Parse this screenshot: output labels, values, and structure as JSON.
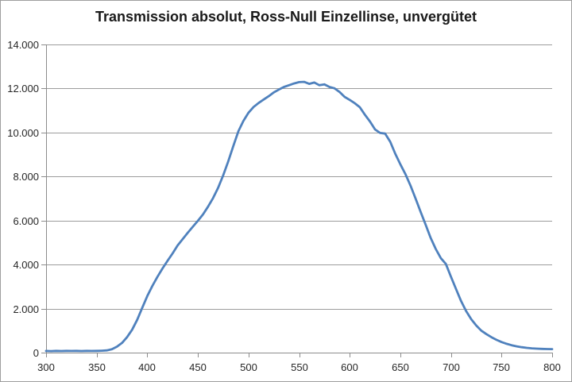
{
  "window": {
    "background": "#ffffff",
    "border_color": "#9e9e9e"
  },
  "chart_data": {
    "type": "line",
    "title": "Transmission absolut, Ross-Null Einzellinse, unvergütet",
    "xlabel": "",
    "ylabel": "",
    "xlim": [
      300,
      800
    ],
    "ylim": [
      0,
      14000
    ],
    "grid": "horizontal",
    "legend": "none",
    "x_tick_values": [
      300,
      350,
      400,
      450,
      500,
      550,
      600,
      650,
      700,
      750,
      800
    ],
    "x_tick_labels": [
      "300",
      "350",
      "400",
      "450",
      "500",
      "550",
      "600",
      "650",
      "700",
      "750",
      "800"
    ],
    "y_tick_values": [
      0,
      2000,
      4000,
      6000,
      8000,
      10000,
      12000,
      14000
    ],
    "y_tick_labels": [
      "0",
      "2.000",
      "4.000",
      "6.000",
      "8.000",
      "10.000",
      "12.000",
      "14.000"
    ],
    "axis_color": "#8c8c8c",
    "gridline_color": "#9c9c9c",
    "label_color": "#262626",
    "series": [
      {
        "color": "#4F81BD",
        "line_width": 2.8,
        "x": [
          300,
          305,
          310,
          315,
          320,
          325,
          330,
          335,
          340,
          345,
          350,
          355,
          360,
          365,
          370,
          375,
          380,
          385,
          390,
          395,
          400,
          405,
          410,
          415,
          420,
          425,
          430,
          435,
          440,
          445,
          450,
          455,
          460,
          465,
          470,
          475,
          480,
          485,
          490,
          495,
          500,
          505,
          510,
          515,
          520,
          525,
          530,
          535,
          540,
          545,
          550,
          555,
          560,
          565,
          570,
          575,
          580,
          585,
          590,
          595,
          600,
          605,
          610,
          615,
          620,
          625,
          630,
          635,
          640,
          645,
          650,
          655,
          660,
          665,
          670,
          675,
          680,
          685,
          690,
          695,
          700,
          705,
          710,
          715,
          720,
          725,
          730,
          735,
          740,
          745,
          750,
          755,
          760,
          765,
          770,
          775,
          780,
          785,
          790,
          795,
          800
        ],
        "y": [
          75,
          70,
          78,
          72,
          80,
          74,
          79,
          72,
          78,
          74,
          80,
          85,
          100,
          150,
          270,
          440,
          700,
          1040,
          1490,
          2030,
          2570,
          3030,
          3440,
          3820,
          4170,
          4510,
          4870,
          5160,
          5450,
          5720,
          5990,
          6280,
          6630,
          7020,
          7490,
          8050,
          8690,
          9390,
          10060,
          10530,
          10900,
          11160,
          11340,
          11500,
          11650,
          11820,
          11950,
          12070,
          12150,
          12230,
          12290,
          12300,
          12210,
          12270,
          12150,
          12190,
          12070,
          12010,
          11840,
          11620,
          11480,
          11330,
          11150,
          10810,
          10500,
          10140,
          9980,
          9950,
          9580,
          9040,
          8560,
          8110,
          7600,
          7010,
          6400,
          5810,
          5210,
          4710,
          4290,
          4030,
          3450,
          2890,
          2350,
          1890,
          1520,
          1230,
          1000,
          840,
          700,
          580,
          480,
          400,
          335,
          285,
          245,
          215,
          195,
          180,
          170,
          163,
          160
        ]
      }
    ]
  }
}
